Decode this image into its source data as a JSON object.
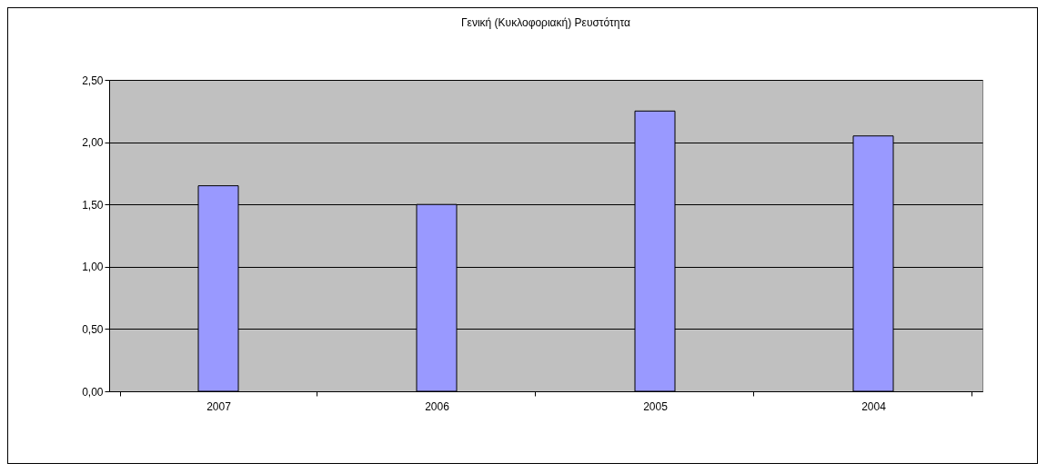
{
  "chart_data": {
    "type": "bar",
    "title": "Γενική (Κυκλοφοριακή) Ρευστότητα",
    "categories": [
      "2007",
      "2006",
      "2005",
      "2004"
    ],
    "values": [
      1.65,
      1.5,
      2.25,
      2.05
    ],
    "color": "#9999ff",
    "ylim": [
      0,
      2.5
    ],
    "yticks": [
      {
        "value": 0,
        "label": "0,00"
      },
      {
        "value": 0.5,
        "label": "0,50"
      },
      {
        "value": 1,
        "label": "1,00"
      },
      {
        "value": 1.5,
        "label": "1,50"
      },
      {
        "value": 2,
        "label": "2,00"
      },
      {
        "value": 2.5,
        "label": "2,50"
      }
    ],
    "grid": "y"
  }
}
